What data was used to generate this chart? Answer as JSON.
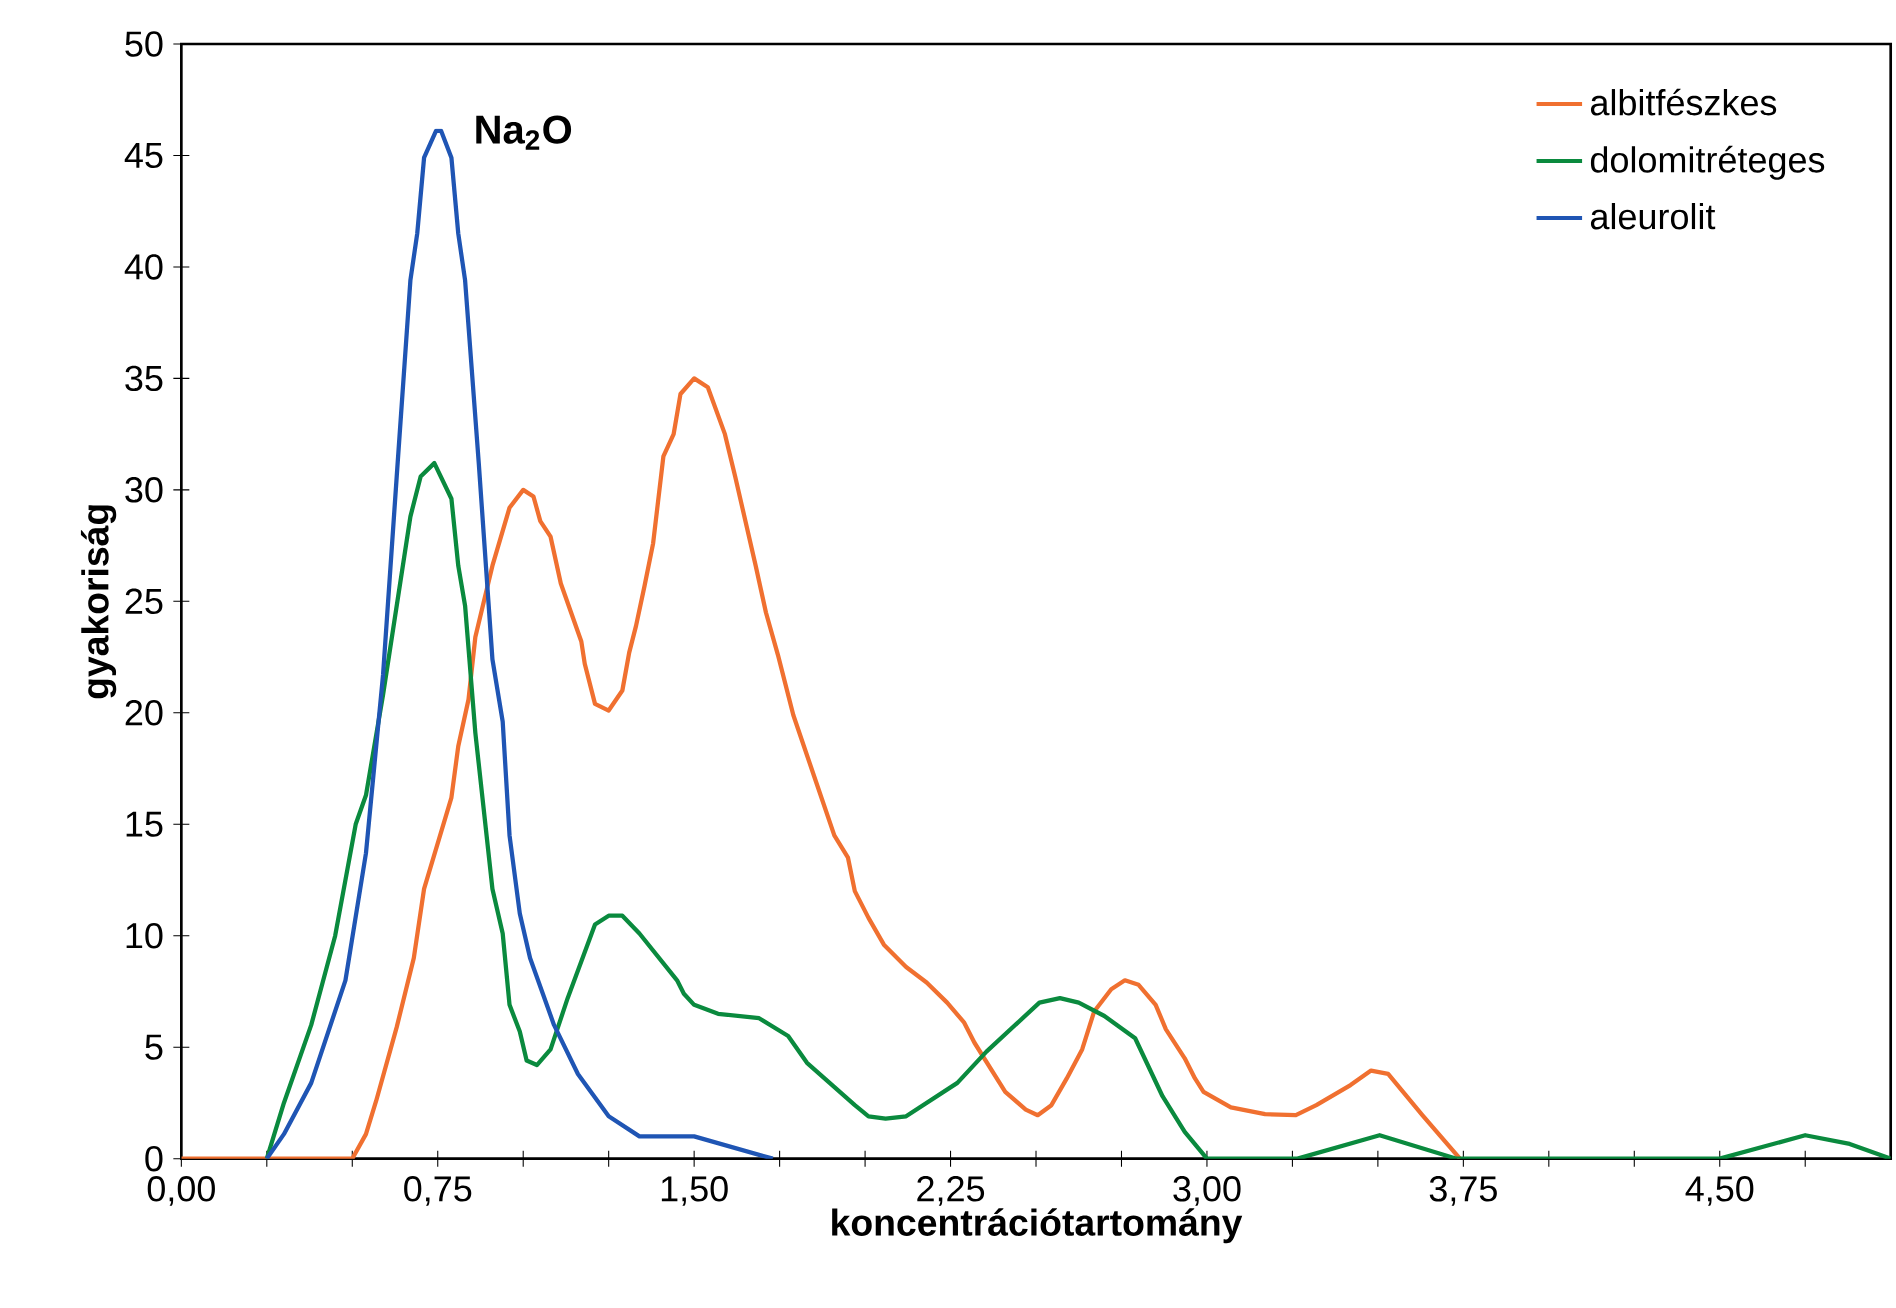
{
  "chart_data": {
    "type": "line",
    "title": "Na$_{2}$O",
    "xlabel": "koncentrációtartomány",
    "ylabel": "gyakoriság",
    "xlim": [
      0,
      5
    ],
    "ylim": [
      0,
      50
    ],
    "xticks": [
      {
        "value": 0,
        "label": "0,00"
      },
      {
        "value": 0.25,
        "label": null
      },
      {
        "value": 0.5,
        "label": null
      },
      {
        "value": 0.75,
        "label": "0,75"
      },
      {
        "value": 1,
        "label": null
      },
      {
        "value": 1.25,
        "label": null
      },
      {
        "value": 1.5,
        "label": "1,50"
      },
      {
        "value": 1.75,
        "label": null
      },
      {
        "value": 2,
        "label": null
      },
      {
        "value": 2.25,
        "label": "2,25"
      },
      {
        "value": 2.5,
        "label": null
      },
      {
        "value": 2.75,
        "label": null
      },
      {
        "value": 3,
        "label": "3,00"
      },
      {
        "value": 3.25,
        "label": null
      },
      {
        "value": 3.5,
        "label": null
      },
      {
        "value": 3.75,
        "label": "3,75"
      },
      {
        "value": 4,
        "label": null
      },
      {
        "value": 4.25,
        "label": null
      },
      {
        "value": 4.5,
        "label": "4,50"
      },
      {
        "value": 4.75,
        "label": null
      }
    ],
    "yticks": [
      0,
      5,
      10,
      15,
      20,
      25,
      30,
      35,
      40,
      45,
      50
    ],
    "grid": false,
    "legend": "top right",
    "marker": "none",
    "line_style": "solid",
    "series": [
      {
        "name": "albitfészkes",
        "color": "#f07030",
        "x": [
          0,
          0.5,
          0.54,
          0.57,
          0.63,
          0.68,
          0.71,
          0.79,
          0.81,
          0.84,
          0.86,
          0.91,
          0.96,
          0.98,
          1.0,
          1.03,
          1.05,
          1.08,
          1.11,
          1.17,
          1.18,
          1.21,
          1.25,
          1.29,
          1.31,
          1.33,
          1.355,
          1.38,
          1.41,
          1.44,
          1.46,
          1.5,
          1.54,
          1.59,
          1.62,
          1.68,
          1.71,
          1.745,
          1.79,
          1.85,
          1.91,
          1.95,
          1.97,
          2.01,
          2.055,
          2.12,
          2.18,
          2.24,
          2.29,
          2.32,
          2.41,
          2.47,
          2.505,
          2.545,
          2.59,
          2.635,
          2.67,
          2.72,
          2.76,
          2.8,
          2.85,
          2.88,
          2.935,
          2.965,
          2.99,
          3.07,
          3.17,
          3.26,
          3.32,
          3.42,
          3.48,
          3.53,
          3.63,
          3.74
        ],
        "values": [
          0,
          0,
          1.1,
          2.6,
          5.9,
          9,
          12.1,
          16.2,
          18.5,
          20.6,
          23.4,
          26.6,
          29.2,
          29.6,
          30,
          29.7,
          28.6,
          27.9,
          25.8,
          23.2,
          22.2,
          20.4,
          20.1,
          21,
          22.7,
          23.9,
          25.7,
          27.6,
          31.5,
          32.5,
          34.3,
          35,
          34.6,
          32.5,
          30.6,
          26.6,
          24.5,
          22.6,
          19.9,
          17.2,
          14.5,
          13.5,
          12,
          10.8,
          9.6,
          8.6,
          7.9,
          7,
          6.1,
          5.2,
          3,
          2.2,
          1.95,
          2.4,
          3.6,
          4.9,
          6.6,
          7.6,
          8,
          7.8,
          6.9,
          5.8,
          4.5,
          3.6,
          3,
          2.3,
          2,
          1.95,
          2.4,
          3.3,
          3.95,
          3.8,
          1.95,
          0
        ]
      },
      {
        "name": "dolomitréteges",
        "color": "#0a8a3e",
        "x": [
          0.25,
          0.3,
          0.38,
          0.45,
          0.51,
          0.54,
          0.59,
          0.63,
          0.67,
          0.7,
          0.74,
          0.79,
          0.81,
          0.83,
          0.86,
          0.91,
          0.94,
          0.96,
          0.99,
          1.01,
          1.04,
          1.08,
          1.13,
          1.21,
          1.25,
          1.29,
          1.34,
          1.45,
          1.47,
          1.5,
          1.57,
          1.69,
          1.775,
          1.83,
          1.97,
          2.01,
          2.06,
          2.12,
          2.27,
          2.355,
          2.51,
          2.57,
          2.625,
          2.7,
          2.79,
          2.87,
          2.935,
          3.0,
          3.265,
          3.505,
          3.73,
          4.5,
          4.75,
          4.88,
          5.0
        ],
        "values": [
          0,
          2.5,
          6,
          10,
          15,
          16.3,
          20.8,
          24.8,
          28.8,
          30.6,
          31.2,
          29.6,
          26.6,
          24.8,
          19.1,
          12.1,
          10.1,
          6.9,
          5.7,
          4.4,
          4.2,
          4.9,
          7.2,
          10.5,
          10.9,
          10.9,
          10.1,
          8,
          7.4,
          6.9,
          6.5,
          6.3,
          5.5,
          4.3,
          2.4,
          1.9,
          1.8,
          1.9,
          3.4,
          4.8,
          7,
          7.2,
          7,
          6.4,
          5.4,
          2.8,
          1.2,
          0,
          0,
          1.05,
          0,
          0,
          1.05,
          0.66,
          0
        ]
      },
      {
        "name": "aleurolit",
        "color": "#1f55b4",
        "x": [
          0.25,
          0.3,
          0.38,
          0.48,
          0.54,
          0.59,
          0.63,
          0.67,
          0.69,
          0.71,
          0.745,
          0.76,
          0.79,
          0.81,
          0.83,
          0.87,
          0.91,
          0.94,
          0.96,
          0.99,
          1.02,
          1.09,
          1.16,
          1.25,
          1.34,
          1.5,
          1.73
        ],
        "values": [
          0,
          1.1,
          3.4,
          8,
          13.7,
          21.7,
          30.6,
          39.4,
          41.5,
          44.9,
          46.1,
          46.1,
          44.9,
          41.5,
          39.4,
          31.2,
          22.4,
          19.6,
          14.5,
          11,
          9,
          6,
          3.8,
          1.9,
          1,
          1,
          0
        ]
      }
    ]
  }
}
